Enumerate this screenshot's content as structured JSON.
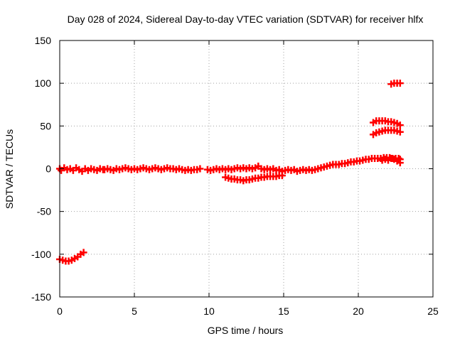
{
  "chart_data": {
    "type": "scatter",
    "title": "Day 028 of 2024, Sidereal Day-to-day VTEC variation (SDTVAR) for receiver hlfx",
    "xlabel": "GPS time / hours",
    "ylabel": "SDTVAR / TECUs",
    "xlim": [
      0,
      25
    ],
    "ylim": [
      -150,
      150
    ],
    "xticks": [
      "0",
      "5",
      "10",
      "15",
      "20",
      "25"
    ],
    "yticks": [
      "150",
      "100",
      "50",
      "0",
      "-50",
      "-100",
      "-150"
    ],
    "grid": true,
    "marker": "plus",
    "series": [
      {
        "color": "#ff0000",
        "points": [
          [
            0.0,
            -106
          ],
          [
            0.2,
            -107
          ],
          [
            0.4,
            -108
          ],
          [
            0.6,
            -108
          ],
          [
            0.8,
            -107
          ],
          [
            1.0,
            -105
          ],
          [
            1.2,
            -103
          ],
          [
            1.4,
            -100
          ],
          [
            1.6,
            -98
          ],
          [
            0.0,
            0
          ],
          [
            0.1,
            -2
          ],
          [
            0.3,
            1
          ],
          [
            0.5,
            -1
          ],
          [
            0.7,
            0
          ],
          [
            0.9,
            -2
          ],
          [
            1.1,
            1
          ],
          [
            1.3,
            -1
          ],
          [
            1.5,
            -3
          ],
          [
            1.7,
            0
          ],
          [
            1.9,
            -2
          ],
          [
            2.1,
            0
          ],
          [
            2.3,
            -1
          ],
          [
            2.5,
            -2
          ],
          [
            2.7,
            0
          ],
          [
            2.9,
            -1
          ],
          [
            3.0,
            -1
          ],
          [
            3.2,
            0
          ],
          [
            3.4,
            -1
          ],
          [
            3.6,
            -2
          ],
          [
            3.8,
            0
          ],
          [
            4.0,
            -1
          ],
          [
            4.2,
            0
          ],
          [
            4.4,
            1
          ],
          [
            4.6,
            0
          ],
          [
            4.8,
            -1
          ],
          [
            5.0,
            0
          ],
          [
            5.2,
            -1
          ],
          [
            5.4,
            0
          ],
          [
            5.6,
            1
          ],
          [
            5.8,
            0
          ],
          [
            6.0,
            -1
          ],
          [
            6.2,
            0
          ],
          [
            6.4,
            1
          ],
          [
            6.6,
            0
          ],
          [
            6.8,
            -1
          ],
          [
            7.0,
            0
          ],
          [
            7.2,
            1
          ],
          [
            7.4,
            0
          ],
          [
            7.6,
            0
          ],
          [
            7.8,
            -1
          ],
          [
            8.0,
            0
          ],
          [
            8.2,
            -1
          ],
          [
            8.4,
            -2
          ],
          [
            8.6,
            -1
          ],
          [
            8.8,
            -2
          ],
          [
            9.0,
            -1
          ],
          [
            9.2,
            -1
          ],
          [
            9.4,
            0
          ],
          [
            9.9,
            -1
          ],
          [
            10.1,
            -2
          ],
          [
            10.3,
            -1
          ],
          [
            10.5,
            0
          ],
          [
            10.7,
            -1
          ],
          [
            10.9,
            0
          ],
          [
            11.1,
            -1
          ],
          [
            11.3,
            0
          ],
          [
            11.5,
            -1
          ],
          [
            11.7,
            0
          ],
          [
            11.9,
            1
          ],
          [
            12.1,
            0
          ],
          [
            12.3,
            1
          ],
          [
            12.5,
            0
          ],
          [
            12.7,
            1
          ],
          [
            12.9,
            0
          ],
          [
            13.1,
            1
          ],
          [
            13.3,
            3
          ],
          [
            13.5,
            0
          ],
          [
            13.7,
            -1
          ],
          [
            13.9,
            0
          ],
          [
            14.1,
            -1
          ],
          [
            14.3,
            0
          ],
          [
            14.5,
            -2
          ],
          [
            14.7,
            -1
          ],
          [
            14.9,
            -3
          ],
          [
            15.1,
            -2
          ],
          [
            15.3,
            -1
          ],
          [
            15.5,
            -2
          ],
          [
            15.7,
            -1
          ],
          [
            15.9,
            -3
          ],
          [
            16.1,
            -2
          ],
          [
            16.3,
            -1
          ],
          [
            16.5,
            -2
          ],
          [
            16.7,
            -1
          ],
          [
            16.9,
            -2
          ],
          [
            17.1,
            -1
          ],
          [
            17.3,
            0
          ],
          [
            17.5,
            1
          ],
          [
            17.7,
            2
          ],
          [
            17.9,
            3
          ],
          [
            18.1,
            4
          ],
          [
            18.3,
            5
          ],
          [
            18.5,
            5
          ],
          [
            18.7,
            5
          ],
          [
            18.9,
            6
          ],
          [
            19.1,
            6
          ],
          [
            19.3,
            7
          ],
          [
            19.5,
            8
          ],
          [
            19.7,
            8
          ],
          [
            19.9,
            9
          ],
          [
            20.1,
            9
          ],
          [
            20.3,
            10
          ],
          [
            20.5,
            11
          ],
          [
            20.7,
            11
          ],
          [
            20.9,
            12
          ],
          [
            21.1,
            12
          ],
          [
            21.3,
            12
          ],
          [
            21.5,
            12
          ],
          [
            21.7,
            13
          ],
          [
            21.9,
            13
          ],
          [
            22.1,
            13
          ],
          [
            22.3,
            12
          ],
          [
            22.5,
            12
          ],
          [
            22.7,
            12
          ],
          [
            22.8,
            11
          ],
          [
            11.1,
            -10
          ],
          [
            11.3,
            -11
          ],
          [
            11.5,
            -12
          ],
          [
            11.7,
            -12
          ],
          [
            11.9,
            -13
          ],
          [
            12.1,
            -13
          ],
          [
            12.3,
            -14
          ],
          [
            12.5,
            -13
          ],
          [
            12.7,
            -13
          ],
          [
            12.9,
            -12
          ],
          [
            13.1,
            -11
          ],
          [
            13.3,
            -11
          ],
          [
            13.5,
            -10
          ],
          [
            13.7,
            -10
          ],
          [
            13.9,
            -9
          ],
          [
            14.1,
            -9
          ],
          [
            14.3,
            -9
          ],
          [
            14.5,
            -9
          ],
          [
            14.7,
            -8
          ],
          [
            14.9,
            -8
          ],
          [
            21.0,
            54
          ],
          [
            21.2,
            56
          ],
          [
            21.4,
            56
          ],
          [
            21.6,
            56
          ],
          [
            21.8,
            56
          ],
          [
            22.0,
            55
          ],
          [
            22.2,
            55
          ],
          [
            22.4,
            54
          ],
          [
            22.6,
            53
          ],
          [
            22.8,
            51
          ],
          [
            21.0,
            40
          ],
          [
            21.2,
            42
          ],
          [
            21.4,
            43
          ],
          [
            21.6,
            44
          ],
          [
            21.8,
            45
          ],
          [
            22.0,
            45
          ],
          [
            22.2,
            45
          ],
          [
            22.4,
            45
          ],
          [
            22.6,
            44
          ],
          [
            22.8,
            43
          ],
          [
            22.2,
            99
          ],
          [
            22.4,
            100
          ],
          [
            22.6,
            100
          ],
          [
            22.8,
            100
          ],
          [
            21.6,
            10
          ],
          [
            21.8,
            11
          ],
          [
            22.0,
            10
          ],
          [
            22.2,
            12
          ],
          [
            22.4,
            11
          ],
          [
            22.6,
            9
          ],
          [
            22.8,
            7
          ]
        ]
      }
    ]
  }
}
